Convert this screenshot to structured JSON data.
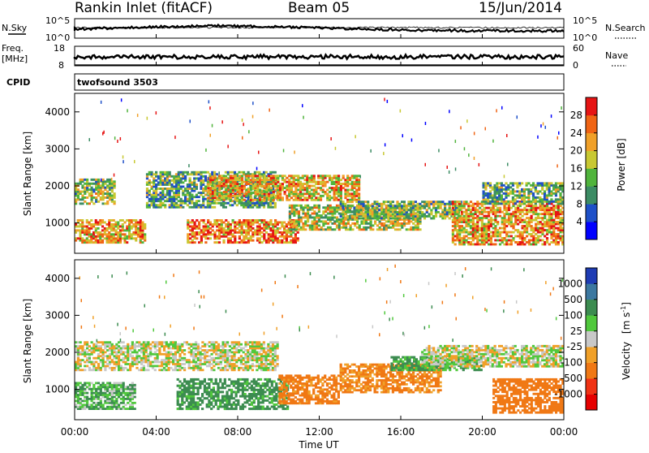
{
  "header": {
    "station": "Rankin Inlet (fitACF)",
    "beam": "Beam 05",
    "date": "15/Jun/2014"
  },
  "top_panels": {
    "nsky_label": "N.Sky",
    "nsearch_label": "N.Search",
    "nsky_ticks": [
      "10^5",
      "10^0"
    ],
    "freq_label_1": "Freq.",
    "freq_label_2": "[MHz]",
    "freq_ticks": [
      "18",
      "8"
    ],
    "nave_label": "Nave",
    "nave_ticks": [
      "60",
      "0"
    ],
    "cpid_label": "CPID",
    "cpid_value": "twofsound 3503",
    "colors": {
      "nsky": "#000000",
      "nsearch": "#000000"
    }
  },
  "chart_data": [
    {
      "type": "heatmap",
      "panel": "power",
      "ylabel": "Slant Range [km]",
      "ylim": [
        180,
        4500
      ],
      "yticks": [
        "1000",
        "2000",
        "3000",
        "4000"
      ],
      "xlim": [
        "00:00",
        "24:00"
      ],
      "colorbar": {
        "label": "Power [dB]",
        "ticks": [
          "4",
          "8",
          "12",
          "16",
          "20",
          "24",
          "28"
        ],
        "colors": [
          "#0000ff",
          "#1e50c8",
          "#3c8c64",
          "#50b43c",
          "#c8c832",
          "#f0a028",
          "#f06414",
          "#e61414"
        ]
      },
      "regions": [
        {
          "t0": 0.0,
          "t1": 2.0,
          "r0": 1500,
          "r1": 2200,
          "level": 0.5
        },
        {
          "t0": 0.0,
          "t1": 3.5,
          "r0": 450,
          "r1": 1100,
          "level": 0.7
        },
        {
          "t0": 3.5,
          "t1": 10.0,
          "r0": 1400,
          "r1": 2400,
          "level": 0.4
        },
        {
          "t0": 6.5,
          "t1": 14.0,
          "r0": 1600,
          "r1": 2300,
          "level": 0.65
        },
        {
          "t0": 5.5,
          "t1": 11.0,
          "r0": 450,
          "r1": 1100,
          "level": 0.75
        },
        {
          "t0": 10.5,
          "t1": 17.0,
          "r0": 800,
          "r1": 1500,
          "level": 0.55
        },
        {
          "t0": 13.0,
          "t1": 19.0,
          "r0": 1100,
          "r1": 1600,
          "level": 0.45
        },
        {
          "t0": 18.5,
          "t1": 24.0,
          "r0": 400,
          "r1": 1600,
          "level": 0.7
        },
        {
          "t0": 20.0,
          "t1": 24.0,
          "r0": 1500,
          "r1": 2100,
          "level": 0.4
        }
      ]
    },
    {
      "type": "heatmap",
      "panel": "velocity",
      "ylabel": "Slant Range [km]",
      "ylim": [
        180,
        4500
      ],
      "yticks": [
        "1000",
        "2000",
        "3000",
        "4000"
      ],
      "xlabel": "Time UT",
      "xticks": [
        "00:00",
        "04:00",
        "08:00",
        "12:00",
        "16:00",
        "20:00",
        "00:00"
      ],
      "xlim": [
        "00:00",
        "24:00"
      ],
      "colorbar": {
        "label_main": "Velocity",
        "label_unit": "[m s",
        "label_exp": "-1",
        "label_close": "]",
        "ticks": [
          "1000",
          "500",
          "100",
          "25",
          "-25",
          "-100",
          "-500",
          "-1000"
        ],
        "colors": [
          "#1e3cb4",
          "#3c78a0",
          "#3c8c50",
          "#50c83c",
          "#c8c8c8",
          "#f0a028",
          "#f07814",
          "#f03214",
          "#e60000"
        ]
      },
      "regions": [
        {
          "t0": 0.0,
          "t1": 10.0,
          "r0": 1500,
          "r1": 2300,
          "vel": 0
        },
        {
          "t0": 0.0,
          "t1": 3.0,
          "r0": 450,
          "r1": 1200,
          "vel": 80
        },
        {
          "t0": 5.0,
          "t1": 10.5,
          "r0": 450,
          "r1": 1300,
          "vel": 150
        },
        {
          "t0": 10.0,
          "t1": 13.0,
          "r0": 600,
          "r1": 1400,
          "vel": -150
        },
        {
          "t0": 13.0,
          "t1": 18.0,
          "r0": 900,
          "r1": 1700,
          "vel": -120
        },
        {
          "t0": 15.5,
          "t1": 20.0,
          "r0": 1500,
          "r1": 1900,
          "vel": 120
        },
        {
          "t0": 20.5,
          "t1": 24.0,
          "r0": 350,
          "r1": 1300,
          "vel": -200
        },
        {
          "t0": 17.0,
          "t1": 24.0,
          "r0": 1600,
          "r1": 2200,
          "vel": 0
        }
      ]
    }
  ]
}
